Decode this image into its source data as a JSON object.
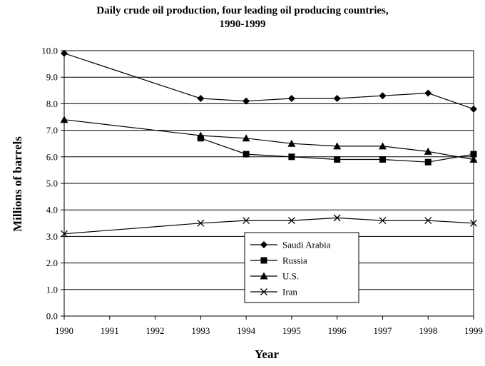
{
  "chart_data": {
    "type": "line",
    "title": "Daily crude oil production, four leading oil producing countries,",
    "subtitle": "1990-1999",
    "xlabel": "Year",
    "ylabel": "Millions of barrels",
    "x": [
      1990,
      1991,
      1992,
      1993,
      1994,
      1995,
      1996,
      1997,
      1998,
      1999
    ],
    "xlim": [
      1990,
      1999
    ],
    "ylim": [
      0,
      10
    ],
    "yticks": [
      "0.0",
      "1.0",
      "2.0",
      "3.0",
      "4.0",
      "5.0",
      "6.0",
      "7.0",
      "8.0",
      "9.0",
      "10.0"
    ],
    "grid": "horizontal",
    "legend_position": "bottom-center",
    "series": [
      {
        "name": "Saudi Arabia",
        "marker": "diamond",
        "x": [
          1990,
          1993,
          1994,
          1995,
          1996,
          1997,
          1998,
          1999
        ],
        "values": [
          9.9,
          8.2,
          8.1,
          8.2,
          8.2,
          8.3,
          8.4,
          7.8
        ]
      },
      {
        "name": "Russia",
        "marker": "square",
        "x": [
          1993,
          1994,
          1995,
          1996,
          1997,
          1998,
          1999
        ],
        "values": [
          6.7,
          6.1,
          6.0,
          5.9,
          5.9,
          5.8,
          6.1
        ]
      },
      {
        "name": "U.S.",
        "marker": "triangle",
        "x": [
          1990,
          1993,
          1994,
          1995,
          1996,
          1997,
          1998,
          1999
        ],
        "values": [
          7.4,
          6.8,
          6.7,
          6.5,
          6.4,
          6.4,
          6.2,
          5.9
        ]
      },
      {
        "name": "Iran",
        "marker": "x",
        "x": [
          1990,
          1993,
          1994,
          1995,
          1996,
          1997,
          1998,
          1999
        ],
        "values": [
          3.1,
          3.5,
          3.6,
          3.6,
          3.7,
          3.6,
          3.6,
          3.5
        ]
      }
    ]
  }
}
